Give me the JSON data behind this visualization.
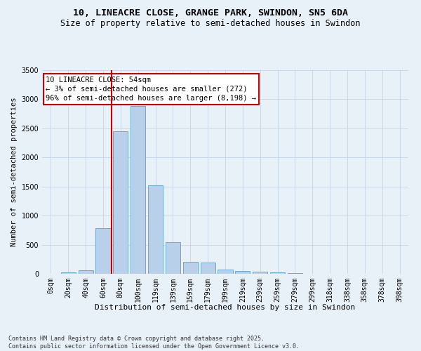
{
  "title": "10, LINEACRE CLOSE, GRANGE PARK, SWINDON, SN5 6DA",
  "subtitle": "Size of property relative to semi-detached houses in Swindon",
  "xlabel": "Distribution of semi-detached houses by size in Swindon",
  "ylabel": "Number of semi-detached properties",
  "xlabels": [
    "0sqm",
    "20sqm",
    "40sqm",
    "60sqm",
    "80sqm",
    "100sqm",
    "119sqm",
    "139sqm",
    "159sqm",
    "179sqm",
    "199sqm",
    "219sqm",
    "239sqm",
    "259sqm",
    "279sqm",
    "299sqm",
    "318sqm",
    "338sqm",
    "358sqm",
    "378sqm",
    "398sqm"
  ],
  "bar_values": [
    5,
    30,
    55,
    790,
    2445,
    2890,
    1520,
    545,
    200,
    190,
    70,
    50,
    40,
    30,
    10,
    5,
    5,
    0,
    0,
    0,
    0
  ],
  "bar_color": "#b8d0ea",
  "bar_edge_color": "#6aaad4",
  "background_color": "#e8f0f8",
  "grid_color": "#c5d5e8",
  "vline_x_idx": 3,
  "vline_color": "#cc0000",
  "annotation_text": "10 LINEACRE CLOSE: 54sqm\n← 3% of semi-detached houses are smaller (272)\n96% of semi-detached houses are larger (8,198) →",
  "ylim": [
    0,
    3500
  ],
  "yticks": [
    0,
    500,
    1000,
    1500,
    2000,
    2500,
    3000,
    3500
  ],
  "footer": "Contains HM Land Registry data © Crown copyright and database right 2025.\nContains public sector information licensed under the Open Government Licence v3.0.",
  "title_fontsize": 9.5,
  "subtitle_fontsize": 8.5,
  "xlabel_fontsize": 8,
  "ylabel_fontsize": 7.5,
  "tick_fontsize": 7,
  "annotation_fontsize": 7.5,
  "footer_fontsize": 6
}
